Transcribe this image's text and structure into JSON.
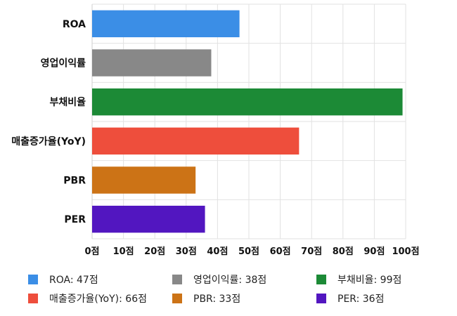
{
  "chart_data": {
    "type": "bar",
    "orientation": "horizontal",
    "categories": [
      "ROA",
      "영업이익률",
      "부채비율",
      "매출증가율(YoY)",
      "PBR",
      "PER"
    ],
    "values": [
      47,
      38,
      99,
      66,
      33,
      36
    ],
    "colors": [
      "#3b8ee6",
      "#888888",
      "#1c8a36",
      "#ee4e3c",
      "#cc7316",
      "#5216c0"
    ],
    "xlim": [
      0,
      100
    ],
    "xticks": [
      "0점",
      "10점",
      "20점",
      "30점",
      "40점",
      "50점",
      "60점",
      "70점",
      "80점",
      "90점",
      "100점"
    ],
    "grid": true,
    "legend_position": "bottom"
  },
  "legend": {
    "items": [
      {
        "label": "ROA: 47점",
        "color": "#3b8ee6"
      },
      {
        "label": "영업이익률: 38점",
        "color": "#888888"
      },
      {
        "label": "부채비율: 99점",
        "color": "#1c8a36"
      },
      {
        "label": "매출증가율(YoY): 66점",
        "color": "#ee4e3c"
      },
      {
        "label": "PBR: 33점",
        "color": "#cc7316"
      },
      {
        "label": "PER: 36점",
        "color": "#5216c0"
      }
    ]
  }
}
